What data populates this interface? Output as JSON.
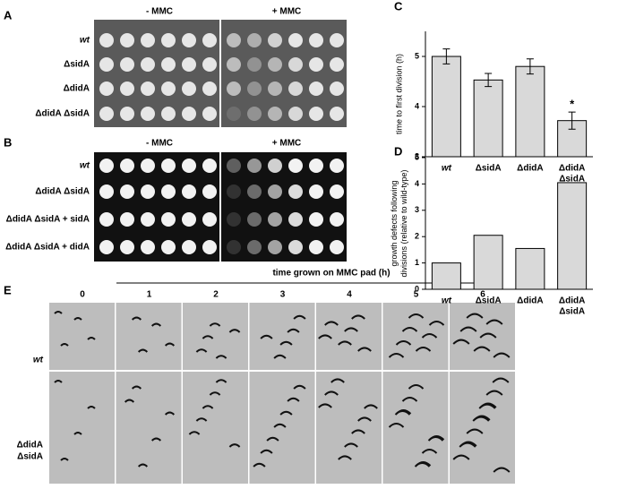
{
  "panels": {
    "a": {
      "label": "A",
      "conditions": [
        "- MMC",
        "+ MMC"
      ],
      "strains": [
        "wt",
        "ΔsidA",
        "ΔdidA",
        "ΔdidA ΔsidA"
      ]
    },
    "b": {
      "label": "B",
      "conditions": [
        "- MMC",
        "+ MMC"
      ],
      "strains": [
        "wt",
        "ΔdidA ΔsidA",
        "ΔdidA ΔsidA + sidA",
        "ΔdidA ΔsidA + didA"
      ]
    },
    "e": {
      "label": "E",
      "title": "time grown on MMC pad (h)",
      "times": [
        "0",
        "1",
        "2",
        "3",
        "4",
        "5",
        "6"
      ],
      "strains": [
        [
          "wt"
        ],
        [
          "ΔdidA",
          "ΔsidA"
        ]
      ]
    }
  },
  "chart_data": [
    {
      "type": "bar",
      "panel_label": "C",
      "y_label": [
        "time to first division (h)"
      ],
      "categories": [
        [
          "wt"
        ],
        [
          "ΔsidA"
        ],
        [
          "ΔdidA"
        ],
        [
          "ΔdidA",
          "ΔsidA"
        ]
      ],
      "values": [
        5.0,
        4.53,
        4.8,
        3.72
      ],
      "errors": [
        0.15,
        0.13,
        0.15,
        0.17
      ],
      "significance_labels": [
        null,
        null,
        null,
        "*"
      ],
      "color": "#d9d9d9",
      "ylim": [
        3,
        5.5
      ],
      "yticks": [
        3,
        4,
        5
      ]
    },
    {
      "type": "bar",
      "panel_label": "D",
      "y_label": [
        "growth defects following",
        "divisions (relative to wild-type)"
      ],
      "categories": [
        [
          "wt"
        ],
        [
          "ΔsidA"
        ],
        [
          "ΔdidA"
        ],
        [
          "ΔdidA",
          "ΔsidA"
        ]
      ],
      "values": [
        1.0,
        2.05,
        1.55,
        4.05
      ],
      "color": "#d9d9d9",
      "ylim": [
        0,
        5
      ],
      "yticks": [
        0,
        1,
        2,
        3,
        4,
        5
      ]
    }
  ]
}
